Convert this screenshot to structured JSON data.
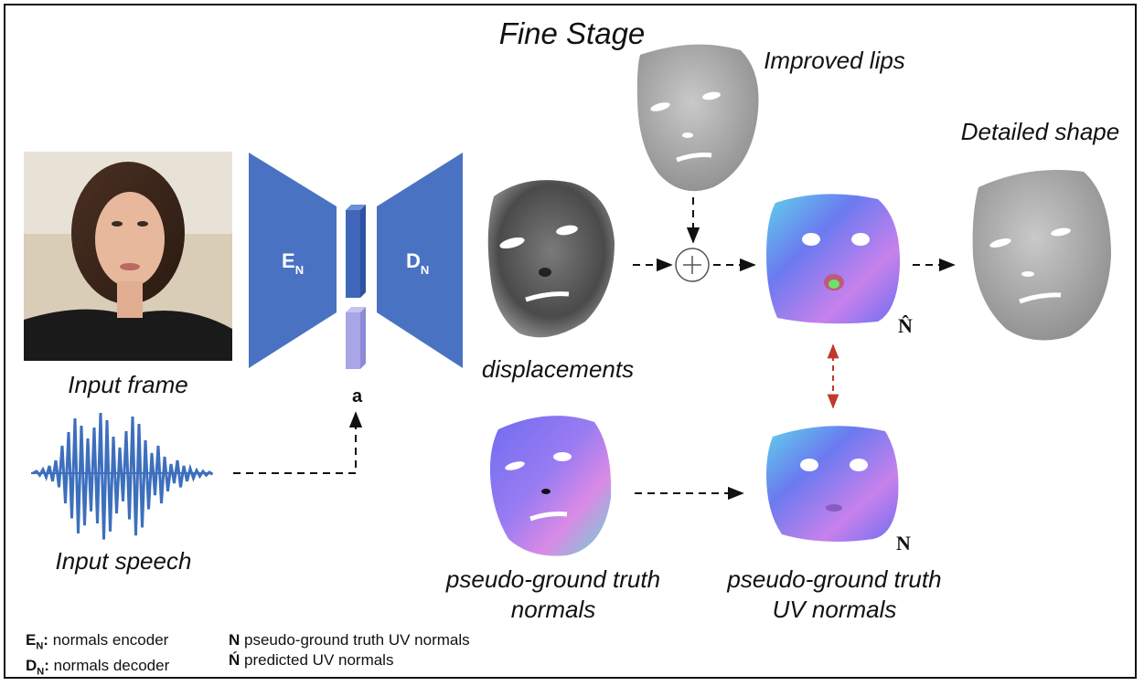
{
  "title": "Fine Stage",
  "captions": {
    "input_frame": "Input frame",
    "input_speech": "Input speech",
    "displacements": "displacements",
    "improved_lips": "Improved lips",
    "detailed_shape": "Detailed shape",
    "pgt_normals": "pseudo-ground truth normals",
    "pgt_uv_normals": "pseudo-ground truth UV normals"
  },
  "network": {
    "encoder_label": "E",
    "encoder_sub": "N",
    "decoder_label": "D",
    "decoder_sub": "N",
    "audio_label": "a"
  },
  "symbols": {
    "predicted": "N̂",
    "ground_truth": "N"
  },
  "legend": [
    {
      "key": "E",
      "sub": "N",
      "text": ": normals encoder"
    },
    {
      "key": "D",
      "sub": "N",
      "text": ": normals decoder"
    },
    {
      "key": "N",
      "sub": "",
      "text": ": pseudo-ground truth UV normals"
    },
    {
      "key": "Ń",
      "sub": "",
      "text": ": predicted UV normals"
    }
  ],
  "colors": {
    "network_blue": "#4a72c2",
    "latent_blue": "#3f66b8",
    "audio_latent": "#a8a6e6",
    "arrow_red": "#c0392b"
  }
}
